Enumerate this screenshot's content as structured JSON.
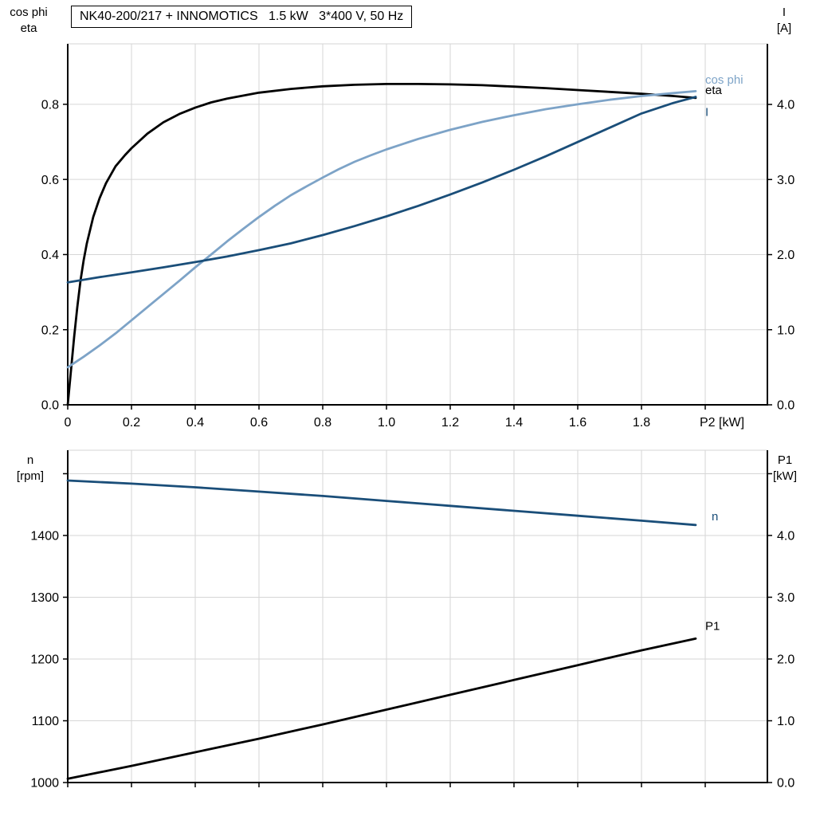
{
  "colors": {
    "background": "#ffffff",
    "axis": "#000000",
    "grid": "#d6d6d6",
    "black": "#000000",
    "light_blue": "#7da3c7",
    "dark_blue": "#1a4e79"
  },
  "chart_data": [
    {
      "type": "line",
      "title": "NK40-200/217 + INNOMOTICS   1.5 kW   3*400 V, 50 Hz",
      "x_axis": {
        "label": "P2 [kW]",
        "range": [
          0,
          2.195
        ],
        "ticks": [
          0,
          0.2,
          0.4,
          0.6,
          0.8,
          1.0,
          1.2,
          1.4,
          1.6,
          1.8,
          2.0
        ],
        "tick_labels": [
          "0",
          "0.2",
          "0.4",
          "0.6",
          "0.8",
          "1.0",
          "1.2",
          "1.4",
          "1.6",
          "1.8",
          ""
        ]
      },
      "left_axis": {
        "title_lines": [
          "cos phi",
          "eta"
        ],
        "range": [
          0,
          0.961
        ],
        "ticks": [
          0,
          0.2,
          0.4,
          0.6,
          0.8
        ],
        "tick_labels": [
          "0.0",
          "0.2",
          "0.4",
          "0.6",
          "0.8"
        ]
      },
      "right_axis": {
        "title_lines": [
          "I",
          "[A]"
        ],
        "range": [
          0,
          4.807
        ],
        "ticks": [
          0,
          1,
          2,
          3,
          4
        ],
        "tick_labels": [
          "0.0",
          "1.0",
          "2.0",
          "3.0",
          "4.0"
        ]
      },
      "series": [
        {
          "id": "eta",
          "name": "eta",
          "axis": "left",
          "color": "#000000",
          "label_at": [
            2.0,
            0.838
          ],
          "points": [
            [
              0,
              0
            ],
            [
              0.01,
              0.09
            ],
            [
              0.02,
              0.18
            ],
            [
              0.03,
              0.26
            ],
            [
              0.04,
              0.33
            ],
            [
              0.05,
              0.385
            ],
            [
              0.06,
              0.43
            ],
            [
              0.08,
              0.5
            ],
            [
              0.1,
              0.55
            ],
            [
              0.12,
              0.59
            ],
            [
              0.15,
              0.635
            ],
            [
              0.18,
              0.665
            ],
            [
              0.2,
              0.683
            ],
            [
              0.25,
              0.722
            ],
            [
              0.3,
              0.752
            ],
            [
              0.35,
              0.774
            ],
            [
              0.4,
              0.791
            ],
            [
              0.45,
              0.805
            ],
            [
              0.5,
              0.815
            ],
            [
              0.6,
              0.831
            ],
            [
              0.7,
              0.841
            ],
            [
              0.8,
              0.848
            ],
            [
              0.9,
              0.852
            ],
            [
              1.0,
              0.854
            ],
            [
              1.1,
              0.854
            ],
            [
              1.2,
              0.853
            ],
            [
              1.3,
              0.851
            ],
            [
              1.4,
              0.847
            ],
            [
              1.5,
              0.843
            ],
            [
              1.6,
              0.838
            ],
            [
              1.7,
              0.833
            ],
            [
              1.8,
              0.828
            ],
            [
              1.9,
              0.822
            ],
            [
              1.97,
              0.817
            ]
          ]
        },
        {
          "id": "cos-phi",
          "name": "cos phi",
          "axis": "left",
          "color": "#7da3c7",
          "label_at": [
            2.0,
            0.866
          ],
          "points": [
            [
              0,
              0.1
            ],
            [
              0.05,
              0.128
            ],
            [
              0.1,
              0.158
            ],
            [
              0.15,
              0.19
            ],
            [
              0.2,
              0.225
            ],
            [
              0.25,
              0.26
            ],
            [
              0.3,
              0.295
            ],
            [
              0.35,
              0.33
            ],
            [
              0.4,
              0.366
            ],
            [
              0.45,
              0.4
            ],
            [
              0.5,
              0.435
            ],
            [
              0.55,
              0.468
            ],
            [
              0.6,
              0.5
            ],
            [
              0.65,
              0.53
            ],
            [
              0.7,
              0.558
            ],
            [
              0.75,
              0.582
            ],
            [
              0.8,
              0.605
            ],
            [
              0.85,
              0.627
            ],
            [
              0.9,
              0.647
            ],
            [
              0.95,
              0.664
            ],
            [
              1.0,
              0.68
            ],
            [
              1.1,
              0.708
            ],
            [
              1.2,
              0.732
            ],
            [
              1.3,
              0.753
            ],
            [
              1.4,
              0.771
            ],
            [
              1.5,
              0.787
            ],
            [
              1.6,
              0.8
            ],
            [
              1.7,
              0.812
            ],
            [
              1.8,
              0.822
            ],
            [
              1.9,
              0.83
            ],
            [
              1.97,
              0.835
            ]
          ]
        },
        {
          "id": "current",
          "name": "I",
          "axis": "right",
          "color": "#1a4e79",
          "label_at": [
            2.0,
            3.9
          ],
          "points": [
            [
              0,
              1.63
            ],
            [
              0.1,
              1.7
            ],
            [
              0.2,
              1.765
            ],
            [
              0.3,
              1.83
            ],
            [
              0.4,
              1.9
            ],
            [
              0.5,
              1.975
            ],
            [
              0.6,
              2.06
            ],
            [
              0.7,
              2.15
            ],
            [
              0.8,
              2.26
            ],
            [
              0.9,
              2.38
            ],
            [
              1.0,
              2.51
            ],
            [
              1.1,
              2.65
            ],
            [
              1.2,
              2.8
            ],
            [
              1.3,
              2.96
            ],
            [
              1.4,
              3.13
            ],
            [
              1.5,
              3.31
            ],
            [
              1.6,
              3.5
            ],
            [
              1.7,
              3.69
            ],
            [
              1.8,
              3.88
            ],
            [
              1.9,
              4.02
            ],
            [
              1.97,
              4.1
            ]
          ]
        }
      ]
    },
    {
      "type": "line",
      "title": "",
      "x_axis": {
        "label": "",
        "range": [
          0,
          2.195
        ],
        "ticks": [
          0,
          0.2,
          0.4,
          0.6,
          0.8,
          1.0,
          1.2,
          1.4,
          1.6,
          1.8,
          2.0
        ],
        "tick_labels": []
      },
      "left_axis": {
        "title_lines": [
          "n",
          "[rpm]"
        ],
        "range": [
          1000,
          1538
        ],
        "ticks": [
          1000,
          1100,
          1200,
          1300,
          1400,
          1500
        ],
        "tick_labels": [
          "1000",
          "1100",
          "1200",
          "1300",
          "1400",
          ""
        ]
      },
      "right_axis": {
        "title_lines": [
          "P1",
          "[kW]"
        ],
        "range": [
          0,
          5.38
        ],
        "ticks": [
          0,
          1,
          2,
          3,
          4,
          5
        ],
        "tick_labels": [
          "0.0",
          "1.0",
          "2.0",
          "3.0",
          "4.0",
          ""
        ]
      },
      "series": [
        {
          "id": "n",
          "name": "n",
          "axis": "left",
          "color": "#1a4e79",
          "label_at": [
            2.02,
            1431
          ],
          "points": [
            [
              0,
              1489
            ],
            [
              0.2,
              1484
            ],
            [
              0.4,
              1478
            ],
            [
              0.6,
              1471
            ],
            [
              0.8,
              1464
            ],
            [
              1.0,
              1456
            ],
            [
              1.2,
              1448
            ],
            [
              1.4,
              1440
            ],
            [
              1.6,
              1432
            ],
            [
              1.8,
              1424
            ],
            [
              1.97,
              1417
            ]
          ]
        },
        {
          "id": "p1",
          "name": "P1",
          "axis": "right",
          "color": "#000000",
          "label_at": [
            2.0,
            2.54
          ],
          "points": [
            [
              0,
              0.06
            ],
            [
              0.2,
              0.27
            ],
            [
              0.4,
              0.49
            ],
            [
              0.6,
              0.71
            ],
            [
              0.8,
              0.94
            ],
            [
              1.0,
              1.18
            ],
            [
              1.2,
              1.42
            ],
            [
              1.4,
              1.66
            ],
            [
              1.6,
              1.9
            ],
            [
              1.8,
              2.14
            ],
            [
              1.97,
              2.33
            ]
          ]
        }
      ]
    }
  ]
}
